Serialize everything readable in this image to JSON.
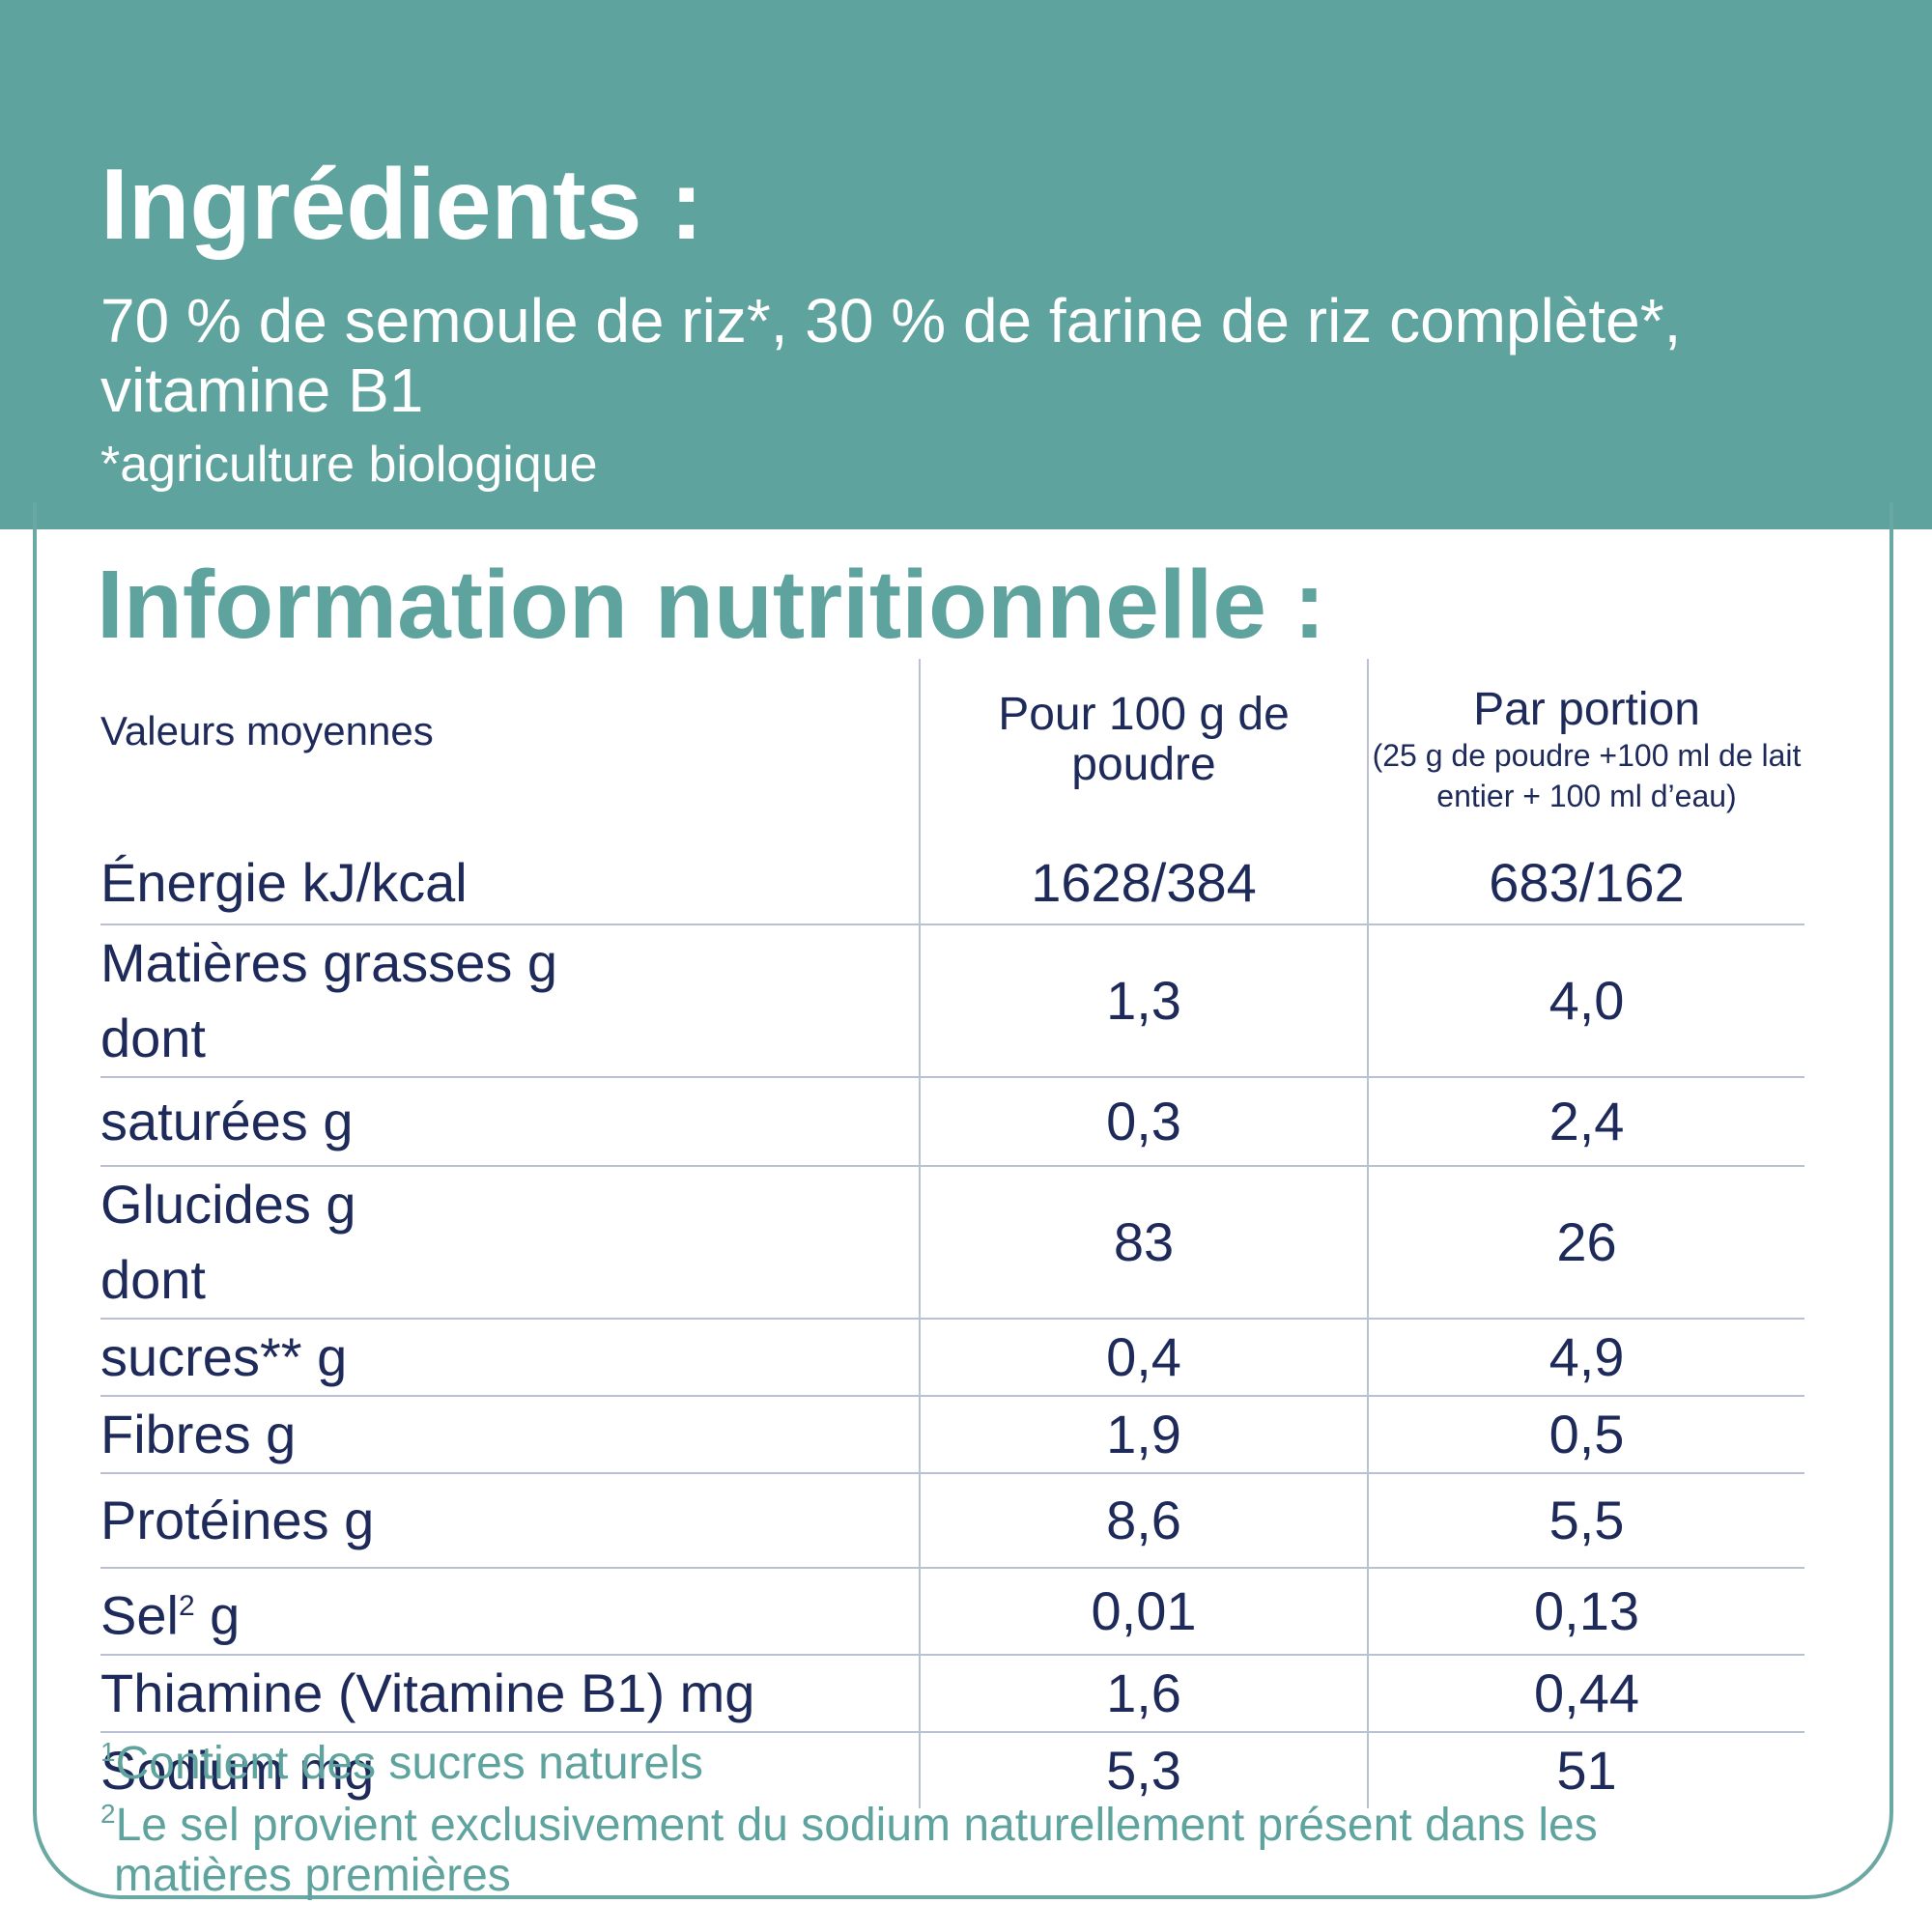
{
  "ingredients": {
    "title": "Ingrédients :",
    "text": "70 % de semoule de riz*, 30 % de farine de riz complète*, vitamine B1",
    "note": "*agriculture biologique"
  },
  "nutrition": {
    "title": "Information nutritionnelle :",
    "header": {
      "label": "Valeurs moyennes",
      "col1": "Pour 100 g de poudre",
      "col2": "Par portion",
      "col2_sub": "(25 g de poudre +100 ml de lait entier + 100 ml d’eau)"
    },
    "rows": [
      {
        "label": "Énergie kJ/kcal",
        "per100": "1628/384",
        "portion": "683/162"
      },
      {
        "label": "Matières grasses g",
        "label2": "dont",
        "per100": "1,3",
        "portion": "4,0"
      },
      {
        "label": "saturées g",
        "per100": "0,3",
        "portion": "2,4"
      },
      {
        "label": "Glucides g",
        "label2": "dont",
        "per100": "83",
        "portion": "26"
      },
      {
        "label": "sucres** g",
        "per100": "0,4",
        "portion": "4,9"
      },
      {
        "label": "Fibres g",
        "per100": "1,9",
        "portion": "0,5"
      },
      {
        "label": "Protéines g",
        "per100": "8,6",
        "portion": "5,5"
      },
      {
        "label": "Sel",
        "label_sup": "2",
        "label_suffix": " g",
        "per100": "0,01",
        "portion": "0,13"
      },
      {
        "label": "Thiamine (Vitamine B1) mg",
        "per100": "1,6",
        "portion": "0,44"
      },
      {
        "label": "Sodium mg",
        "per100": "5,3",
        "portion": "51"
      }
    ]
  },
  "footnotes": {
    "note1_mark": "1",
    "note1_text": "Contient des sucres naturels",
    "note2_mark": "2",
    "note2_text": "Le sel provient exclusivement du sodium naturellement présent dans les",
    "note2_text_cont": "matières premières"
  },
  "colors": {
    "teal": "#5fa39e",
    "navy": "#1d2a5a"
  }
}
